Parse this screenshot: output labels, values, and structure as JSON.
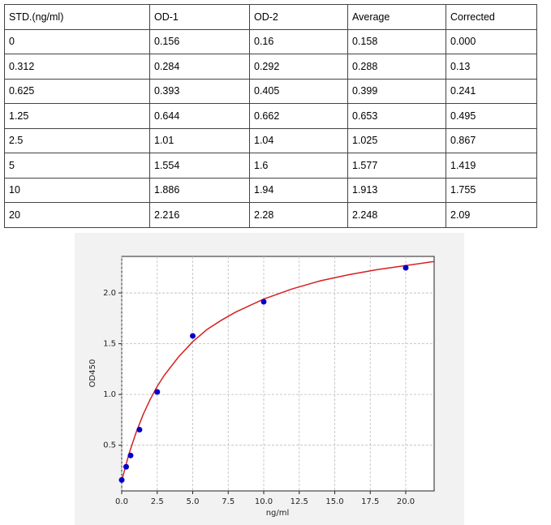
{
  "table": {
    "header": [
      "STD.(ng/ml)",
      "OD-1",
      "OD-2",
      "Average",
      "Corrected"
    ],
    "rows": [
      [
        "0",
        "0.156",
        "0.16",
        "0.158",
        "0.000"
      ],
      [
        "0.312",
        "0.284",
        "0.292",
        "0.288",
        "0.13"
      ],
      [
        "0.625",
        "0.393",
        "0.405",
        "0.399",
        "0.241"
      ],
      [
        "1.25",
        "0.644",
        "0.662",
        "0.653",
        "0.495"
      ],
      [
        "2.5",
        "1.01",
        "1.04",
        "1.025",
        "0.867"
      ],
      [
        "5",
        "1.554",
        "1.6",
        "1.577",
        "1.419"
      ],
      [
        "10",
        "1.886",
        "1.94",
        "1.913",
        "1.755"
      ],
      [
        "20",
        "2.216",
        "2.28",
        "2.248",
        "2.09"
      ]
    ]
  },
  "chart_data": {
    "type": "scatter",
    "x_label": "ng/ml",
    "y_label": "OD450",
    "xlim": [
      0,
      22
    ],
    "ylim": [
      0.05,
      2.36
    ],
    "grid": true,
    "xticks": [
      {
        "value": 0,
        "label": "0.0"
      },
      2.5,
      {
        "value": 5,
        "label": "5.0"
      },
      7.5,
      {
        "value": 10,
        "label": "10.0"
      },
      12.5,
      {
        "value": 15,
        "label": "15.0"
      },
      17.5,
      {
        "value": 20,
        "label": "20.0"
      }
    ],
    "yticks": [
      0.5,
      {
        "value": 1,
        "label": "1.0"
      },
      1.5,
      {
        "value": 2,
        "label": "2.0"
      }
    ],
    "series": [
      {
        "color": "#0000cc",
        "x": [
          0,
          0.312,
          0.625,
          1.25,
          2.5,
          5,
          10,
          20
        ],
        "values": [
          0.158,
          0.288,
          0.399,
          0.653,
          1.025,
          1.577,
          1.913,
          2.248
        ]
      },
      {
        "color": "#d62020",
        "x": [
          0,
          0.5,
          1,
          1.5,
          2,
          2.5,
          3,
          4,
          5,
          6,
          7,
          8,
          10,
          12,
          14,
          16,
          18,
          20,
          22
        ],
        "values": [
          0.15,
          0.41,
          0.62,
          0.8,
          0.95,
          1.08,
          1.19,
          1.37,
          1.52,
          1.64,
          1.73,
          1.81,
          1.94,
          2.04,
          2.12,
          2.18,
          2.23,
          2.27,
          2.31
        ]
      }
    ]
  }
}
